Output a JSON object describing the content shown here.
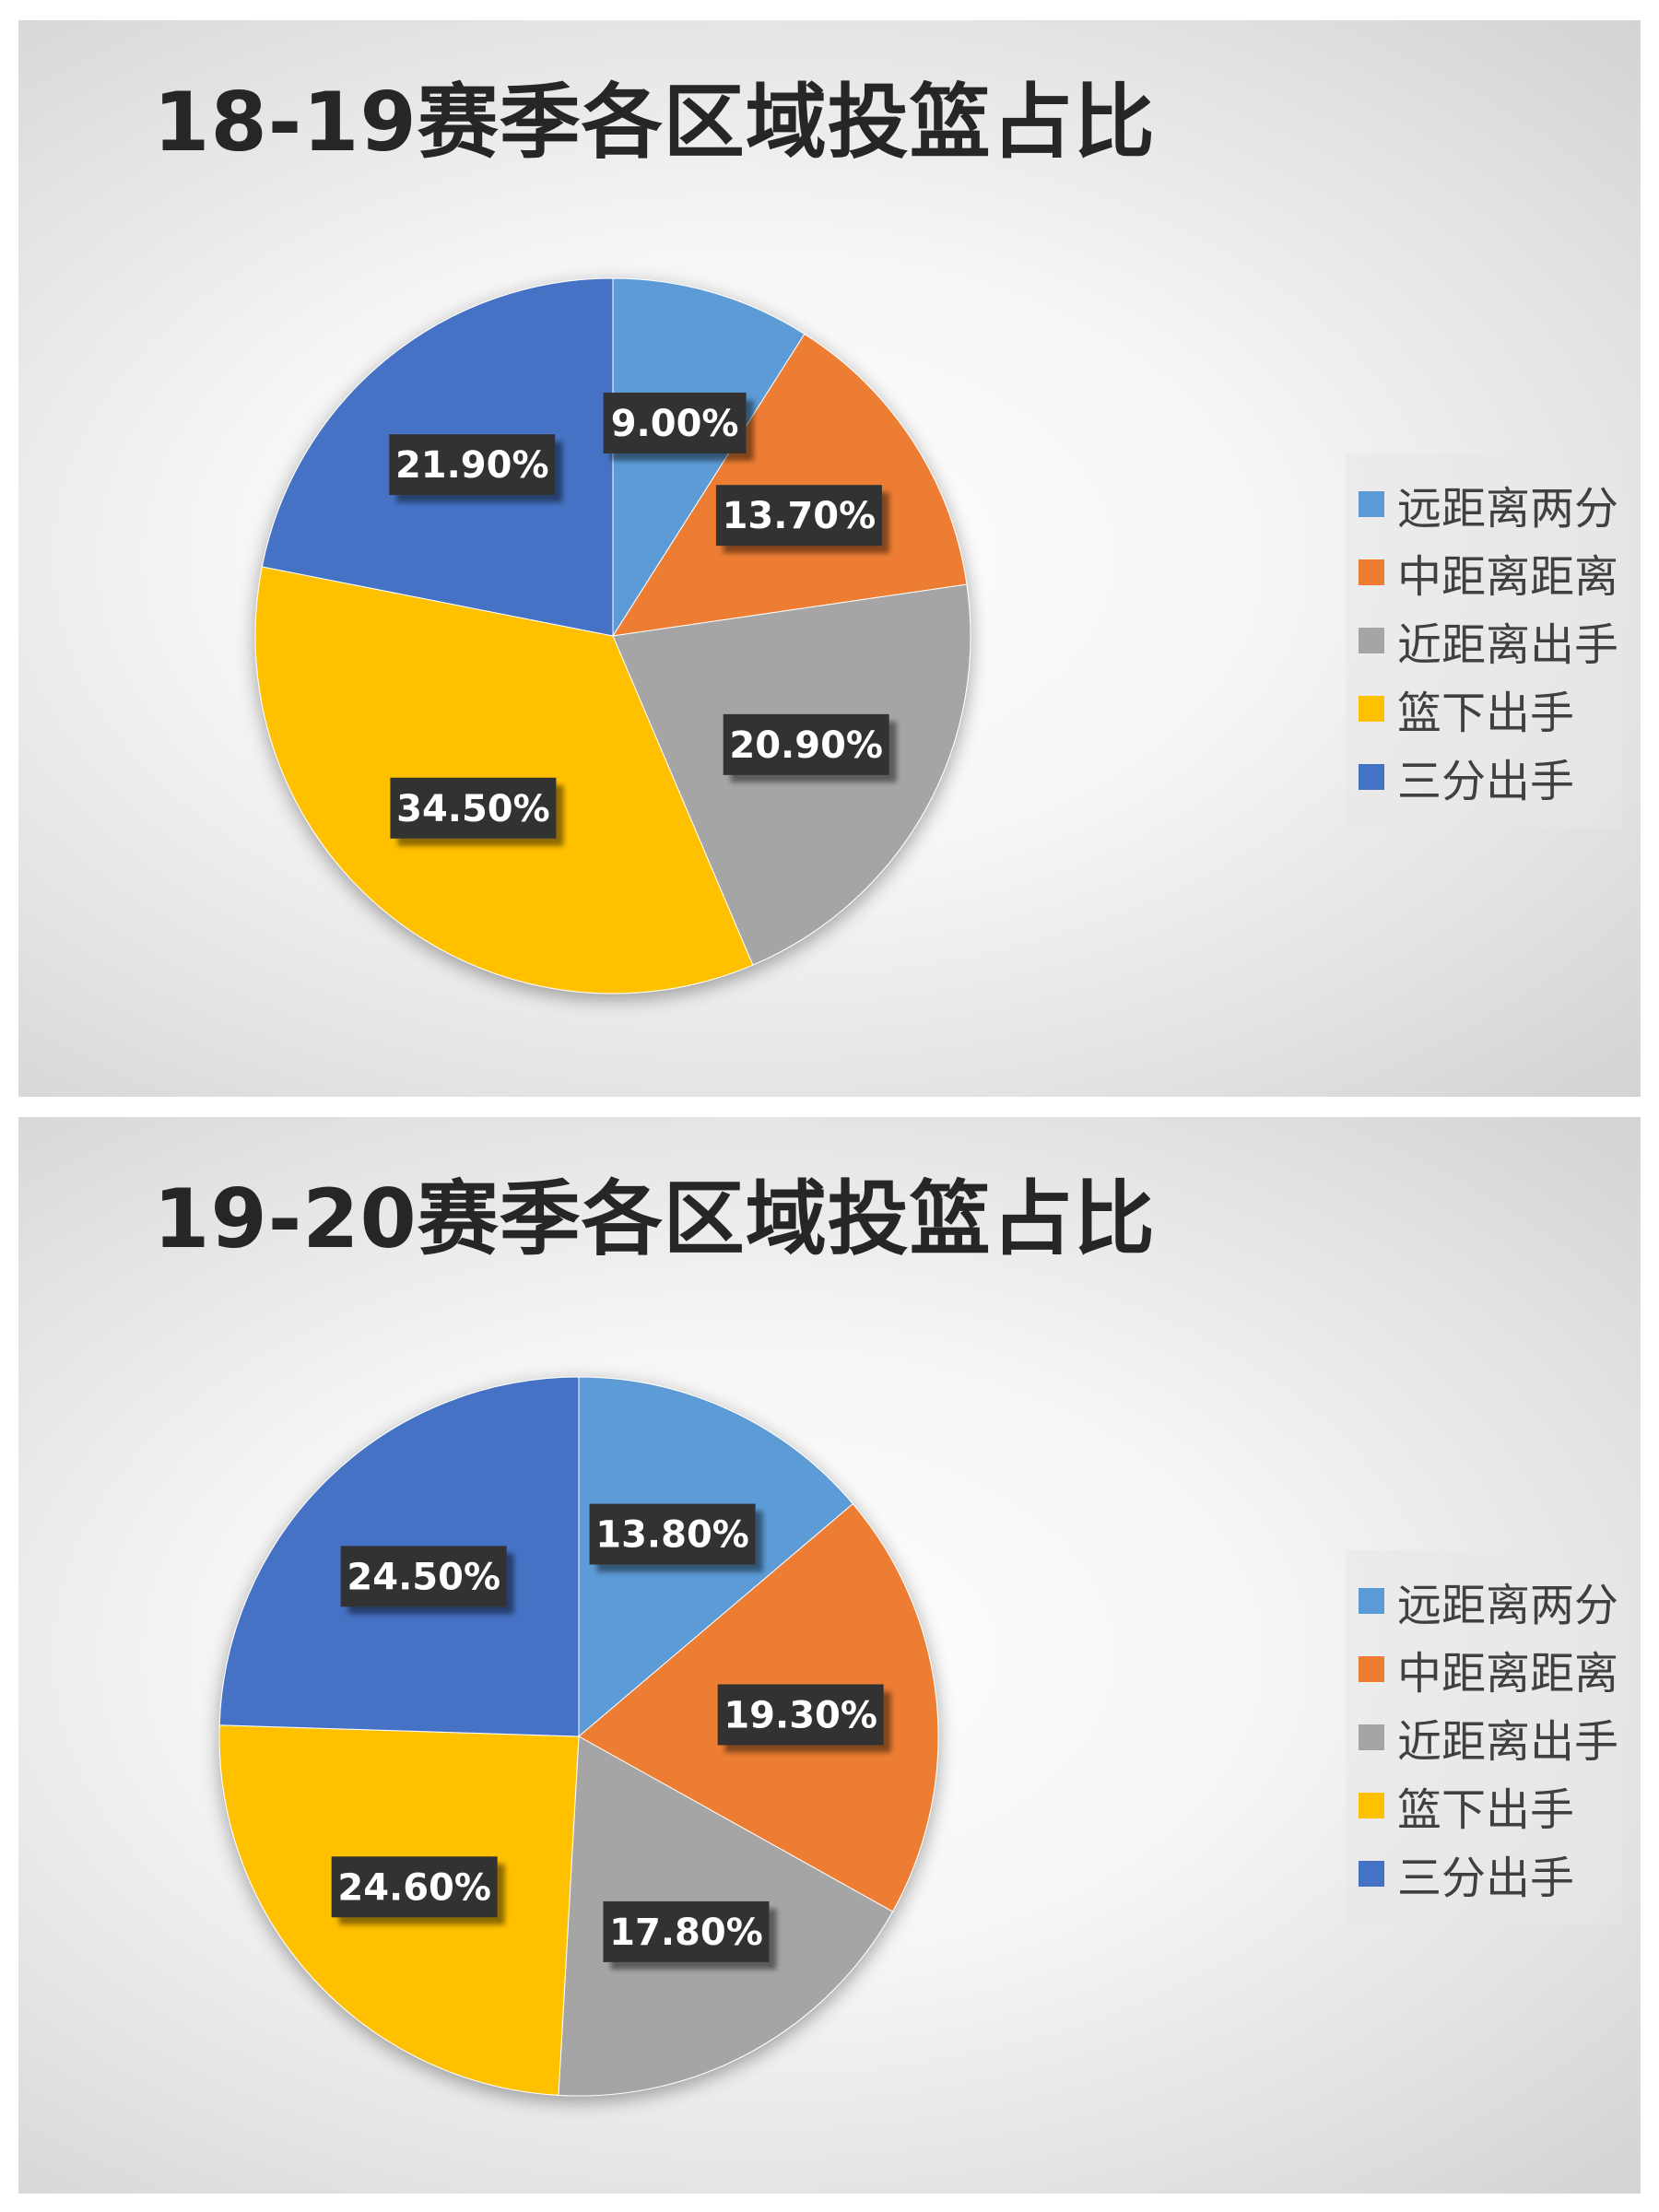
{
  "chart_data": [
    {
      "type": "pie",
      "title": "18-19赛季各区域投篮占比",
      "labels": [
        "远距离两分",
        "中距离距离",
        "近距离出手",
        "篮下出手",
        "三分出手"
      ],
      "values": [
        9.0,
        13.7,
        20.9,
        34.5,
        21.9
      ],
      "data_labels": [
        "9.00%",
        "13.70%",
        "20.90%",
        "34.50%",
        "21.90%"
      ],
      "colors": [
        "#5B9BD5",
        "#ED7D31",
        "#A5A5A5",
        "#FFC000",
        "#4472C4"
      ],
      "legend": "right"
    },
    {
      "type": "pie",
      "title": "19-20赛季各区域投篮占比",
      "labels": [
        "远距离两分",
        "中距离距离",
        "近距离出手",
        "篮下出手",
        "三分出手"
      ],
      "values": [
        13.8,
        19.3,
        17.8,
        24.6,
        24.5
      ],
      "data_labels": [
        "13.80%",
        "19.30%",
        "17.80%",
        "24.60%",
        "24.50%"
      ],
      "colors": [
        "#5B9BD5",
        "#ED7D31",
        "#A5A5A5",
        "#FFC000",
        "#4472C4"
      ],
      "legend": "right"
    }
  ]
}
